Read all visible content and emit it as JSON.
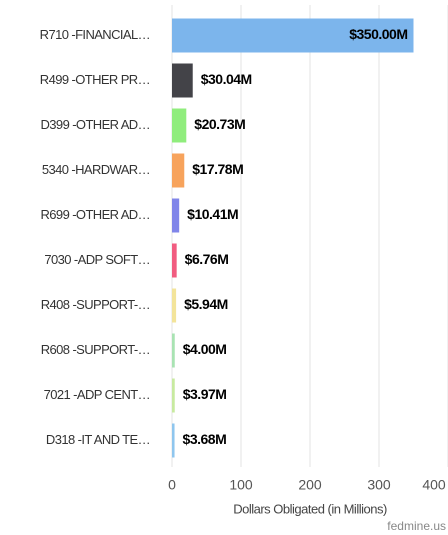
{
  "chart_data": {
    "type": "bar",
    "orientation": "horizontal",
    "categories": [
      "R710 -FINANCIAL…",
      "R499 -OTHER PR…",
      "D399 -OTHER AD…",
      "5340 -HARDWAR…",
      "R699 -OTHER AD…",
      "7030 -ADP SOFT…",
      "R408 -SUPPORT-…",
      "R608 -SUPPORT-…",
      "7021 -ADP CENT…",
      "D318 -IT AND TE…"
    ],
    "values": [
      350,
      30.04,
      20.73,
      17.78,
      10.41,
      6.76,
      5.94,
      4.0,
      3.97,
      3.68
    ],
    "value_labels": [
      "$350.00M",
      "$30.04M",
      "$20.73M",
      "$17.78M",
      "$10.41M",
      "$6.76M",
      "$5.94M",
      "$4.00M",
      "$3.97M",
      "$3.68M"
    ],
    "colors": [
      "#7cb5ec",
      "#434348",
      "#90ed7d",
      "#f7a35c",
      "#8085e9",
      "#f15c80",
      "#f3e49a",
      "#a9e3b3",
      "#c8eaa0",
      "#8fc6ee"
    ],
    "xlim": [
      0,
      400
    ],
    "xticks": [
      0,
      100,
      200,
      300,
      400
    ],
    "grid": true,
    "xlabel": "Dollars Obligated (in Millions)",
    "credit": "fedmine.us"
  }
}
